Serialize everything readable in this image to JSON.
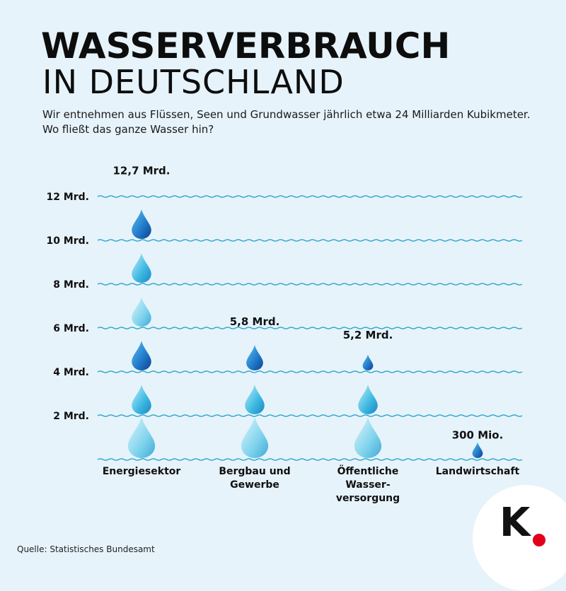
{
  "title_line1": "WASSERVERBRAUCH",
  "title_line2": "IN DEUTSCHLAND",
  "subtitle": "Wir entnehmen aus Flüssen, Seen und Grundwasser jährlich etwa 24 Milliarden Kubikmeter. Wo fließt das ganze Wasser hin?",
  "source": "Quelle: Statistisches Bundesamt",
  "logo": "K.",
  "colors": {
    "background": "#e6f3fb",
    "wave": "#2aa6c9",
    "logo_dot": "#e2001a"
  },
  "chart_data": {
    "type": "bar",
    "title": "",
    "xlabel": "",
    "ylabel": "",
    "ylim": [
      0,
      13
    ],
    "y_ticks": [
      {
        "value": 2,
        "label": "2 Mrd."
      },
      {
        "value": 4,
        "label": "4 Mrd."
      },
      {
        "value": 6,
        "label": "6 Mrd."
      },
      {
        "value": 8,
        "label": "8 Mrd."
      },
      {
        "value": 10,
        "label": "10 Mrd."
      },
      {
        "value": 12,
        "label": "12 Mrd."
      }
    ],
    "categories": [
      {
        "label_lines": [
          "Energiesektor"
        ],
        "value": 12.7,
        "value_label": "12,7 Mrd."
      },
      {
        "label_lines": [
          "Bergbau und",
          "Gewerbe"
        ],
        "value": 5.8,
        "value_label": "5,8 Mrd."
      },
      {
        "label_lines": [
          "Öffentliche",
          "Wasser-",
          "versorgung"
        ],
        "value": 5.2,
        "value_label": "5,2 Mrd."
      },
      {
        "label_lines": [
          "Landwirtschaft"
        ],
        "value": 0.3,
        "value_label": "300 Mio."
      }
    ],
    "marker": "water-drop",
    "grid": "wavy lines"
  }
}
